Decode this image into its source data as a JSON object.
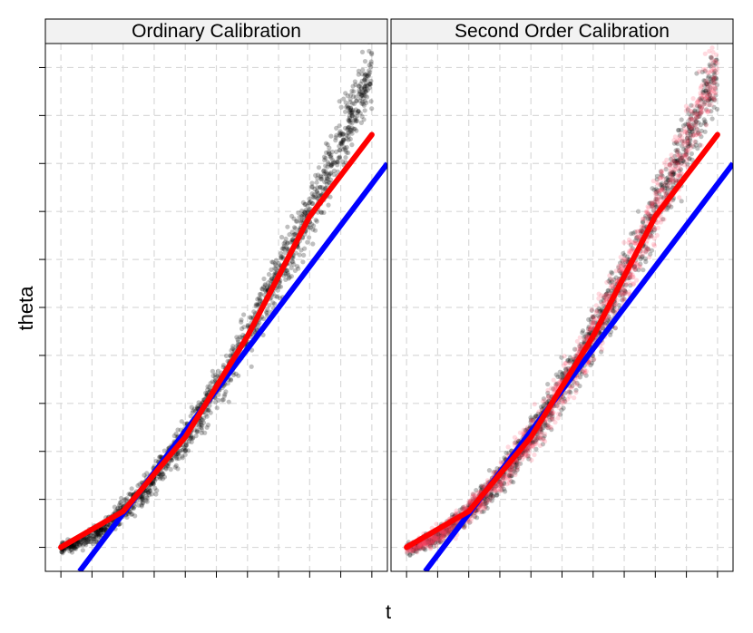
{
  "chart_data": {
    "type": "scatter",
    "xlabel": "t",
    "ylabel": "theta",
    "x_axis": {
      "range": [
        -0.05,
        1.05
      ],
      "ticks": [
        0,
        0.1,
        0.2,
        0.3,
        0.4,
        0.5,
        0.6,
        0.7,
        0.8,
        0.9,
        1.0
      ],
      "tick_labels_shown": false
    },
    "y_axis": {
      "range": [
        -0.05,
        1.05
      ],
      "ticks": [
        0,
        0.1,
        0.2,
        0.3,
        0.4,
        0.5,
        0.6,
        0.7,
        0.8,
        0.9,
        1.0
      ],
      "tick_labels_shown": false
    },
    "grid": "dashed",
    "panels": [
      {
        "title": "Ordinary Calibration",
        "series": [
          {
            "role": "points",
            "color": "#000000",
            "opacity": 0.25,
            "x_range": [
              0,
              1
            ],
            "n": 1500,
            "relation": "theta ≈ t^1.6 + noise"
          },
          {
            "role": "linear-fit",
            "color": "#0000ff",
            "x": [
              0.06,
              1.05
            ],
            "y": [
              -0.05,
              0.8
            ]
          },
          {
            "role": "curve-fit",
            "color": "#ff0000",
            "x": [
              0,
              0.2,
              0.4,
              0.6,
              0.8,
              1.0
            ],
            "y": [
              0,
              0.075,
              0.23,
              0.44,
              0.69,
              0.86
            ]
          }
        ]
      },
      {
        "title": "Second Order Calibration",
        "series": [
          {
            "role": "points",
            "color": "#000000",
            "opacity": 0.25,
            "x_range": [
              0,
              1
            ],
            "n": 1500,
            "relation": "theta ≈ t^1.6 + noise"
          },
          {
            "role": "points",
            "color": "#ff4466",
            "opacity": 0.2,
            "x_range": [
              0,
              1
            ],
            "n": 1500,
            "relation": "theta ≈ t^1.6 + noise"
          },
          {
            "role": "linear-fit",
            "color": "#0000ff",
            "x": [
              0.06,
              1.05
            ],
            "y": [
              -0.05,
              0.8
            ]
          },
          {
            "role": "curve-fit",
            "color": "#ff0000",
            "x": [
              0,
              0.2,
              0.4,
              0.6,
              0.8,
              1.0
            ],
            "y": [
              0,
              0.075,
              0.23,
              0.44,
              0.69,
              0.86
            ]
          }
        ]
      }
    ]
  }
}
